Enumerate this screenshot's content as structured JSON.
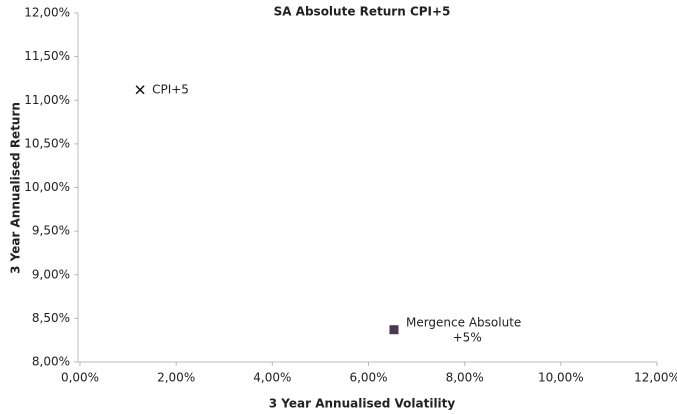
{
  "chart_data": {
    "type": "scatter",
    "title": "SA Absolute Return CPI+5",
    "x_label": "3 Year Annualised Volatility",
    "y_label": "3 Year Annualised Return",
    "xlim": [
      0,
      12
    ],
    "ylim": [
      8,
      12
    ],
    "xticks": [
      {
        "value": 0,
        "label": "0,00%"
      },
      {
        "value": 2,
        "label": "2,00%"
      },
      {
        "value": 4,
        "label": "4,00%"
      },
      {
        "value": 6,
        "label": "6,00%"
      },
      {
        "value": 8,
        "label": "8,00%"
      },
      {
        "value": 10,
        "label": "10,00%"
      },
      {
        "value": 12,
        "label": "12,00%"
      }
    ],
    "yticks": [
      {
        "value": 8,
        "label": "8,00%"
      },
      {
        "value": 8.5,
        "label": "8,50%"
      },
      {
        "value": 9,
        "label": "9,00%"
      },
      {
        "value": 9.5,
        "label": "9,50%"
      },
      {
        "value": 10,
        "label": "10,00%"
      },
      {
        "value": 10.5,
        "label": "10,50%"
      },
      {
        "value": 11,
        "label": "11,00%"
      },
      {
        "value": 11.5,
        "label": "11,50%"
      },
      {
        "value": 12,
        "label": "12,00%"
      }
    ],
    "series": [
      {
        "name": "CPI+5",
        "color": "#111111",
        "marker": "x",
        "x": [
          1.25
        ],
        "values": [
          11.12
        ]
      },
      {
        "name": "Mergence Absolute +5%",
        "color": "#4a3850",
        "marker": "square",
        "x": [
          6.53
        ],
        "values": [
          8.37
        ]
      }
    ]
  }
}
